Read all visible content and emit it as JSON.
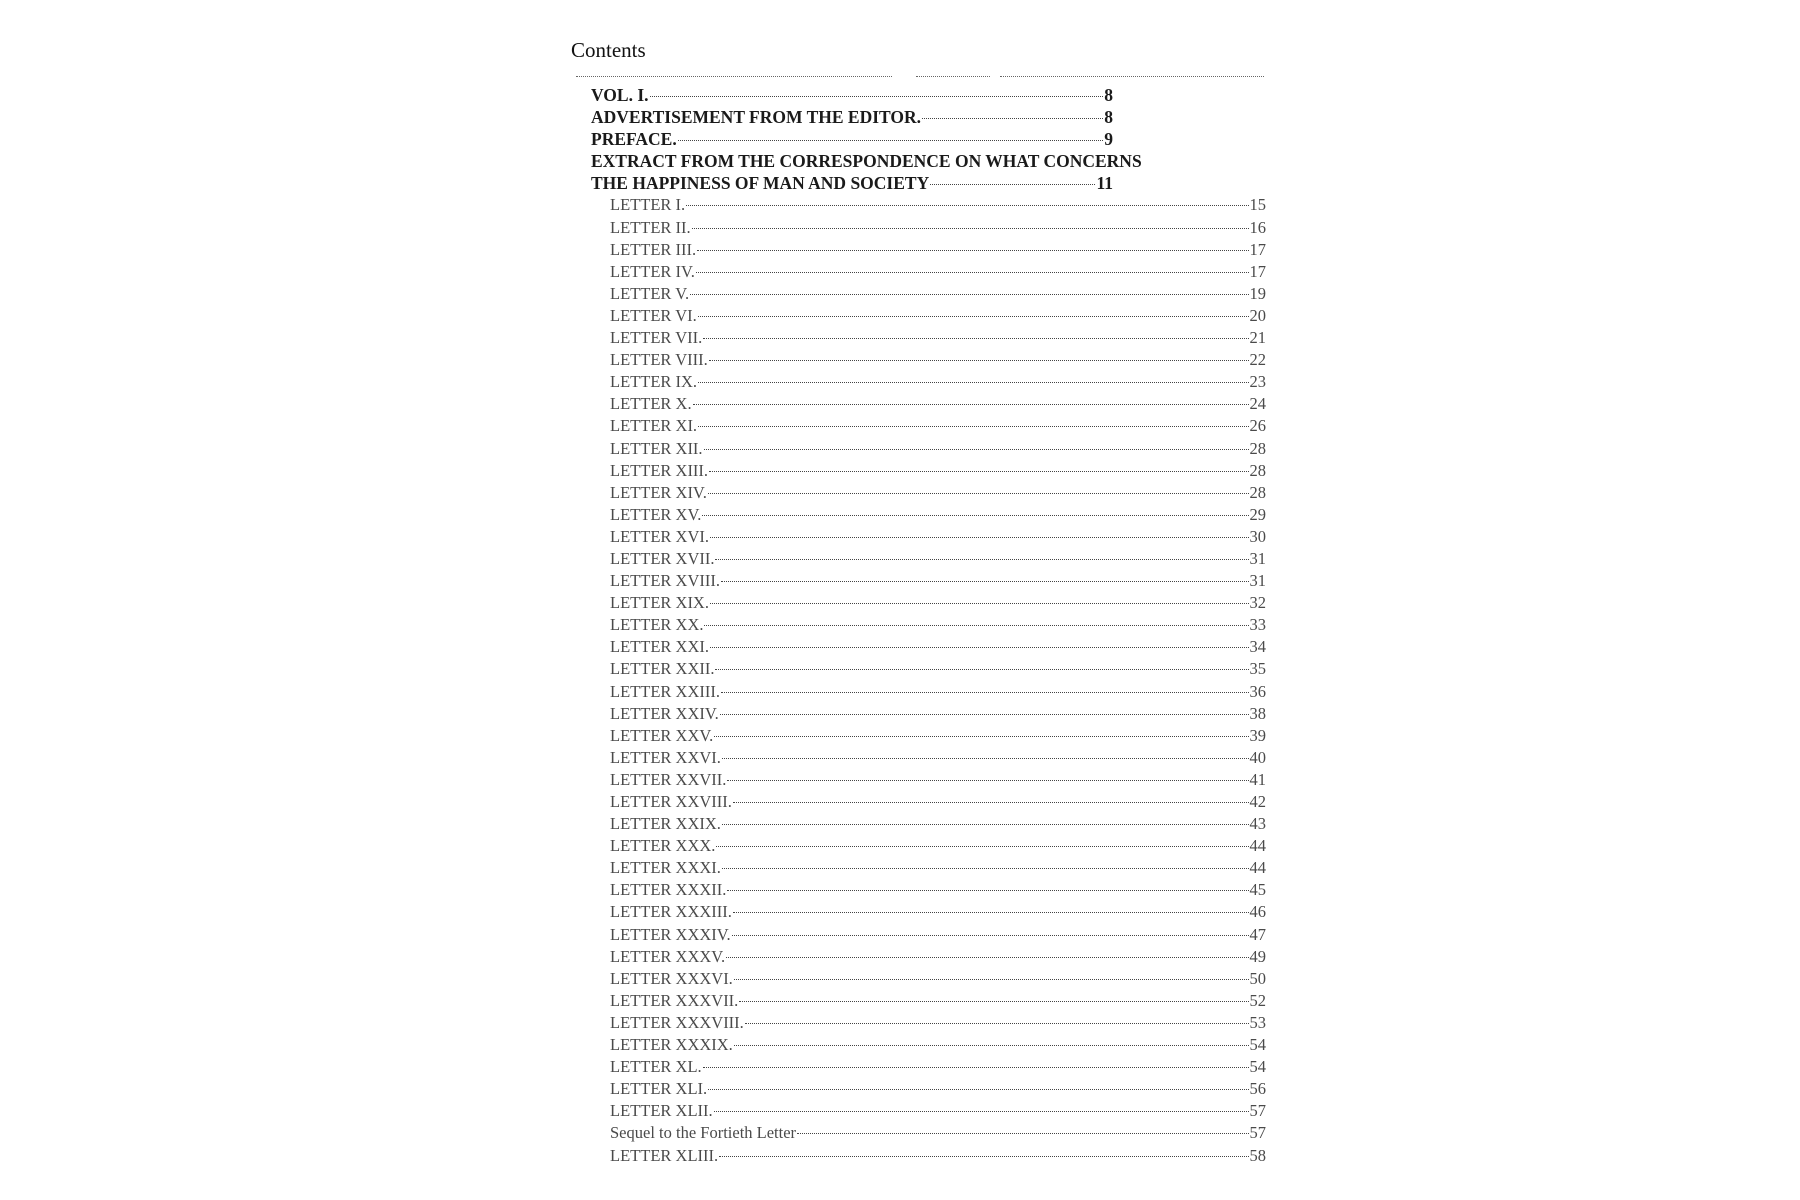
{
  "heading": "Contents",
  "main_entries": [
    {
      "title": "VOL. I.",
      "page": "8"
    },
    {
      "title": "ADVERTISEMENT FROM THE EDITOR.",
      "page": "8"
    },
    {
      "title": "PREFACE.",
      "page": "9"
    }
  ],
  "extract": {
    "line1": "EXTRACT FROM THE CORRESPONDENCE ON WHAT CONCERNS",
    "line2": "THE HAPPINESS OF MAN AND SOCIETY",
    "page": "11"
  },
  "letters": [
    {
      "title": "LETTER I.",
      "page": "15"
    },
    {
      "title": "LETTER II.",
      "page": "16"
    },
    {
      "title": "LETTER III.",
      "page": "17"
    },
    {
      "title": "LETTER IV.",
      "page": "17"
    },
    {
      "title": "LETTER V.",
      "page": "19"
    },
    {
      "title": "LETTER VI.",
      "page": "20"
    },
    {
      "title": "LETTER VII.",
      "page": "21"
    },
    {
      "title": "LETTER VIII.",
      "page": "22"
    },
    {
      "title": "LETTER IX.",
      "page": "23"
    },
    {
      "title": "LETTER X.",
      "page": "24"
    },
    {
      "title": "LETTER XI.",
      "page": "26"
    },
    {
      "title": "LETTER XII.",
      "page": "28"
    },
    {
      "title": "LETTER XIII.",
      "page": "28"
    },
    {
      "title": "LETTER XIV.",
      "page": "28"
    },
    {
      "title": "LETTER XV.",
      "page": "29"
    },
    {
      "title": "LETTER XVI.",
      "page": "30"
    },
    {
      "title": "LETTER XVII.",
      "page": "31"
    },
    {
      "title": "LETTER XVIII.",
      "page": "31"
    },
    {
      "title": "LETTER XIX.",
      "page": "32"
    },
    {
      "title": "LETTER XX.",
      "page": "33"
    },
    {
      "title": "LETTER XXI.",
      "page": "34"
    },
    {
      "title": "LETTER XXII.",
      "page": "35"
    },
    {
      "title": "LETTER XXIII.",
      "page": "36"
    },
    {
      "title": "LETTER XXIV.",
      "page": "38"
    },
    {
      "title": "LETTER XXV.",
      "page": "39"
    },
    {
      "title": "LETTER XXVI.",
      "page": "40"
    },
    {
      "title": "LETTER XXVII.",
      "page": "41"
    },
    {
      "title": "LETTER XXVIII.",
      "page": "42"
    },
    {
      "title": "LETTER XXIX.",
      "page": "43"
    },
    {
      "title": "LETTER XXX.",
      "page": "44"
    },
    {
      "title": "LETTER XXXI.",
      "page": "44"
    },
    {
      "title": "LETTER XXXII.",
      "page": "45"
    },
    {
      "title": "LETTER XXXIII.",
      "page": "46"
    },
    {
      "title": "LETTER XXXIV.",
      "page": "47"
    },
    {
      "title": "LETTER XXXV.",
      "page": "49"
    },
    {
      "title": "LETTER XXXVI.",
      "page": "50"
    },
    {
      "title": "LETTER XXXVII.",
      "page": "52"
    },
    {
      "title": "LETTER XXXVIII.",
      "page": "53"
    },
    {
      "title": "LETTER XXXIX.",
      "page": "54"
    },
    {
      "title": "LETTER XL.",
      "page": "54"
    },
    {
      "title": "LETTER XLI.",
      "page": "56"
    },
    {
      "title": "LETTER XLII.",
      "page": "57"
    },
    {
      "title": "Sequel to the Fortieth Letter",
      "page": "57"
    },
    {
      "title": "LETTER XLIII.",
      "page": "58"
    }
  ]
}
